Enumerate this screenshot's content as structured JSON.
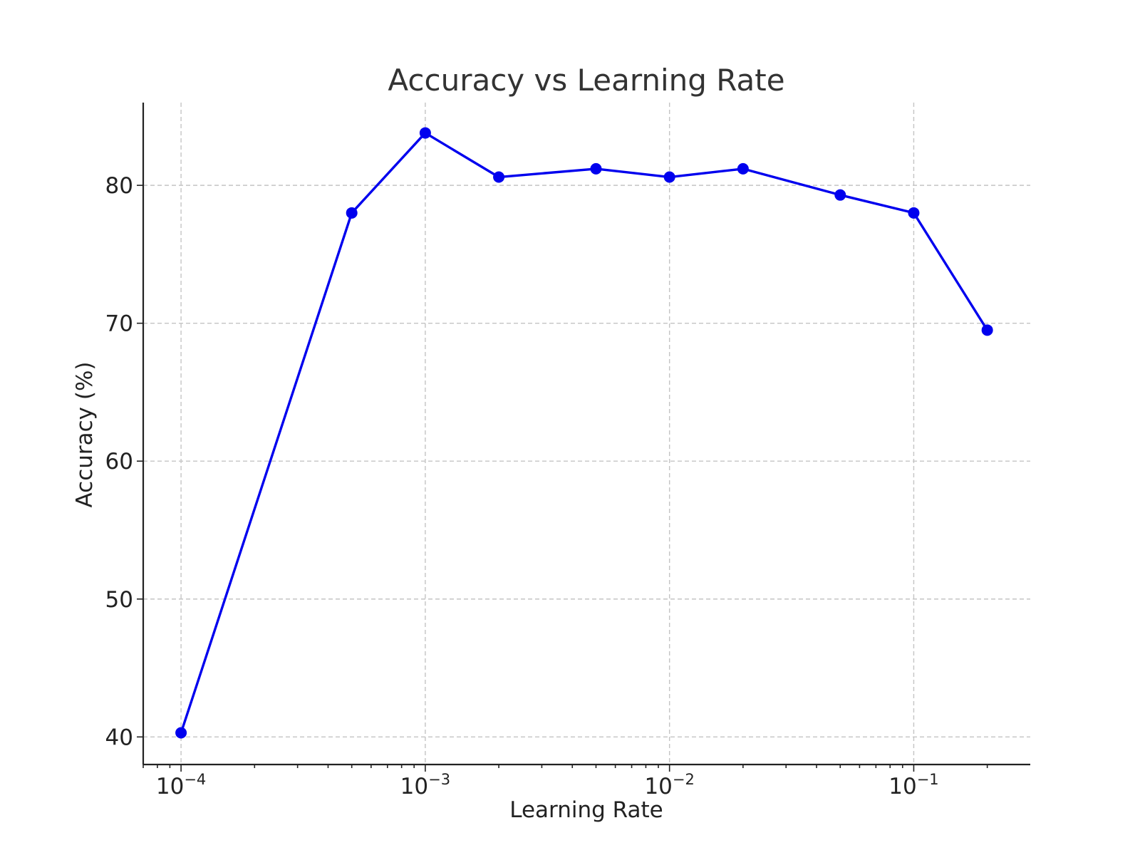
{
  "chart_data": {
    "type": "line",
    "title": "Accuracy vs Learning Rate",
    "xlabel": "Learning Rate",
    "ylabel": "Accuracy (%)",
    "xscale": "log",
    "xlim": [
      7e-05,
      0.3
    ],
    "ylim": [
      38,
      86
    ],
    "x_ticks": [
      {
        "value": 0.0001,
        "base": "10",
        "exp": "−4"
      },
      {
        "value": 0.001,
        "base": "10",
        "exp": "−3"
      },
      {
        "value": 0.01,
        "base": "10",
        "exp": "−2"
      },
      {
        "value": 0.1,
        "base": "10",
        "exp": "−1"
      }
    ],
    "y_ticks": [
      40,
      50,
      60,
      70,
      80
    ],
    "grid": true,
    "line_color": "#0000ee",
    "series": [
      {
        "x": [
          0.0001,
          0.0005,
          0.001,
          0.002,
          0.005,
          0.01,
          0.02,
          0.05,
          0.1,
          0.2
        ],
        "y": [
          40.3,
          78.0,
          83.8,
          80.6,
          81.2,
          80.6,
          81.2,
          79.3,
          78.0,
          69.5
        ]
      }
    ]
  }
}
